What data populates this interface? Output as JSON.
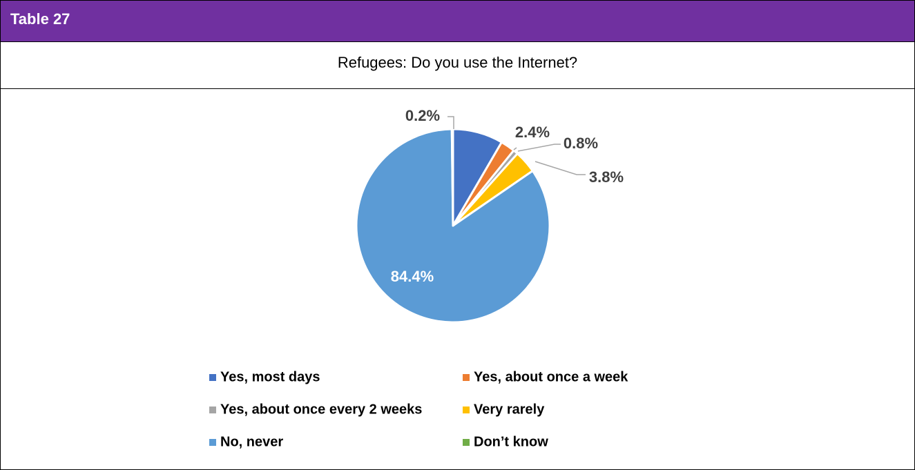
{
  "header": {
    "title": "Table 27",
    "background": "#7030a0"
  },
  "chart_data": {
    "type": "pie",
    "title": "Refugees: Do you use the Internet?",
    "legend_position": "bottom",
    "slices": [
      {
        "name": "Yes, most days",
        "value": 8.4,
        "color": "#4472c4",
        "label": ""
      },
      {
        "name": "Yes, about once a week",
        "value": 2.4,
        "color": "#ed7d31",
        "label": "2.4%"
      },
      {
        "name": "Yes, about once every 2 weeks",
        "value": 0.8,
        "color": "#a5a5a5",
        "label": "0.8%"
      },
      {
        "name": "Very rarely",
        "value": 3.8,
        "color": "#ffc000",
        "label": "3.8%"
      },
      {
        "name": "No, never",
        "value": 84.4,
        "color": "#5b9bd5",
        "label": "84.4%"
      },
      {
        "name": "Don’t know",
        "value": 0.2,
        "color": "#70ad47",
        "label": "0.2%"
      }
    ]
  }
}
